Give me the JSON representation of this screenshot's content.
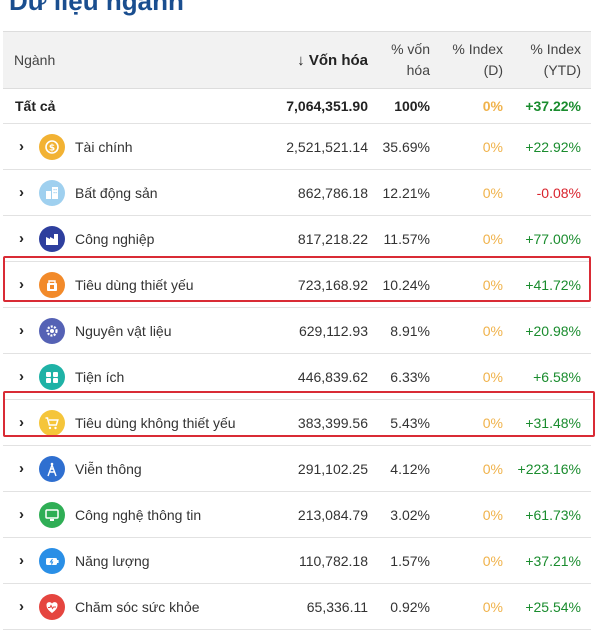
{
  "page": {
    "title": "Dữ liệu ngành"
  },
  "table": {
    "headers": {
      "sector": "Ngành",
      "market_cap": "↓ Vốn hóa",
      "cap_share_l1": "% vốn",
      "cap_share_l2": "hóa",
      "index_d_l1": "% Index",
      "index_d_l2": "(D)",
      "index_ytd_l1": "% Index",
      "index_ytd_l2": "(YTD)"
    },
    "total": {
      "name": "Tất cả",
      "market_cap": "7,064,351.90",
      "cap_share": "100%",
      "index_d": "0%",
      "index_ytd": "+37.22%"
    },
    "rows": [
      {
        "name": "Tài chính",
        "icon": "finance-coin-icon",
        "color": "#f2b233",
        "market_cap": "2,521,521.14",
        "cap_share": "35.69%",
        "index_d": "0%",
        "index_ytd": "+22.92%",
        "trend": "pos"
      },
      {
        "name": "Bất động sản",
        "icon": "real-estate-buildings-icon",
        "color": "#9fd0ef",
        "market_cap": "862,786.18",
        "cap_share": "12.21%",
        "index_d": "0%",
        "index_ytd": "-0.08%",
        "trend": "neg"
      },
      {
        "name": "Công nghiệp",
        "icon": "industry-factory-icon",
        "color": "#2e3f9e",
        "market_cap": "817,218.22",
        "cap_share": "11.57%",
        "index_d": "0%",
        "index_ytd": "+77.00%",
        "trend": "pos"
      },
      {
        "name": "Tiêu dùng thiết yếu",
        "icon": "consumer-staples-basket-icon",
        "color": "#f28a2a",
        "market_cap": "723,168.92",
        "cap_share": "10.24%",
        "index_d": "0%",
        "index_ytd": "+41.72%",
        "trend": "pos",
        "highlighted": true
      },
      {
        "name": "Nguyên vật liệu",
        "icon": "materials-gear-icon",
        "color": "#5562b5",
        "market_cap": "629,112.93",
        "cap_share": "8.91%",
        "index_d": "0%",
        "index_ytd": "+20.98%",
        "trend": "pos"
      },
      {
        "name": "Tiện ích",
        "icon": "utilities-icon",
        "color": "#1fb2a6",
        "market_cap": "446,839.62",
        "cap_share": "6.33%",
        "index_d": "0%",
        "index_ytd": "+6.58%",
        "trend": "pos"
      },
      {
        "name": "Tiêu dùng không thiết yếu",
        "icon": "shopping-cart-icon",
        "color": "#f5c53a",
        "market_cap": "383,399.56",
        "cap_share": "5.43%",
        "index_d": "0%",
        "index_ytd": "+31.48%",
        "trend": "pos",
        "highlighted": true
      },
      {
        "name": "Viễn thông",
        "icon": "telecom-tower-icon",
        "color": "#2f6fd0",
        "market_cap": "291,102.25",
        "cap_share": "4.12%",
        "index_d": "0%",
        "index_ytd": "+223.16%",
        "trend": "pos"
      },
      {
        "name": "Công nghệ thông tin",
        "icon": "computer-monitor-icon",
        "color": "#2fae55",
        "market_cap": "213,084.79",
        "cap_share": "3.02%",
        "index_d": "0%",
        "index_ytd": "+61.73%",
        "trend": "pos"
      },
      {
        "name": "Năng lượng",
        "icon": "energy-battery-icon",
        "color": "#2a8fe6",
        "market_cap": "110,782.18",
        "cap_share": "1.57%",
        "index_d": "0%",
        "index_ytd": "+37.21%",
        "trend": "pos"
      },
      {
        "name": "Chăm sóc sức khỏe",
        "icon": "healthcare-heart-icon",
        "color": "#e5453f",
        "market_cap": "65,336.11",
        "cap_share": "0.92%",
        "index_d": "0%",
        "index_ytd": "+25.54%",
        "trend": "pos"
      }
    ]
  }
}
